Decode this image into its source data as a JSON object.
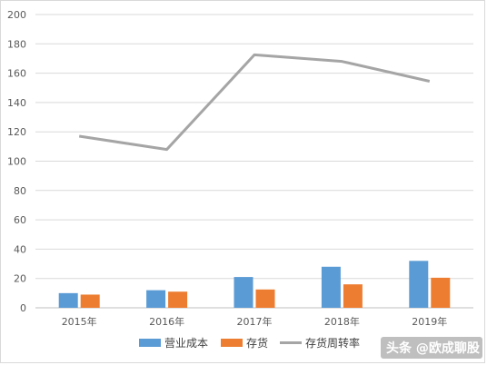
{
  "chart_data": {
    "type": "bar",
    "categories": [
      "2015年",
      "2016年",
      "2017年",
      "2018年",
      "2019年"
    ],
    "series": [
      {
        "name": "营业成本",
        "type": "bar",
        "color": "#5b9bd5",
        "values": [
          10,
          12,
          21,
          28,
          32
        ]
      },
      {
        "name": "存货",
        "type": "bar",
        "color": "#ed7d31",
        "values": [
          9,
          11,
          12.5,
          16,
          20.5
        ]
      },
      {
        "name": "存货周转率",
        "type": "line",
        "color": "#a5a5a5",
        "values": [
          117,
          108,
          172.5,
          168,
          154.5
        ]
      }
    ],
    "ylim": [
      0,
      200
    ],
    "yticks": [
      0,
      20,
      40,
      60,
      80,
      100,
      120,
      140,
      160,
      180,
      200
    ],
    "grid": true,
    "legend_position": "bottom"
  },
  "watermark": {
    "text": "头条 @欧成聊股"
  }
}
